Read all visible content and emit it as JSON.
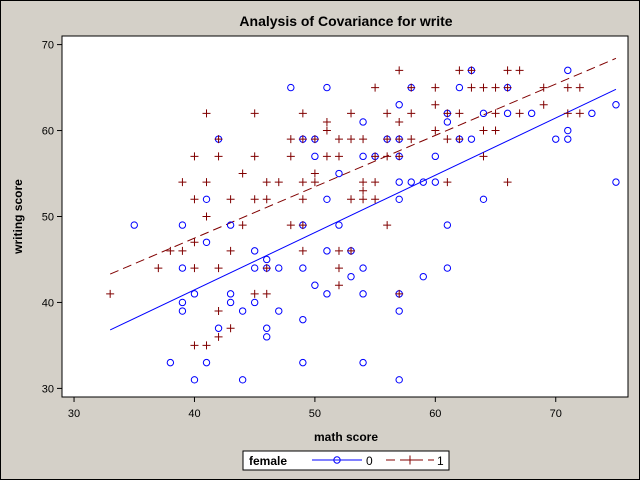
{
  "chart_data": {
    "type": "scatter",
    "title": "Analysis of Covariance for write",
    "xlabel": "math score",
    "ylabel": "writing score",
    "xlim": [
      29,
      76
    ],
    "ylim": [
      29,
      71
    ],
    "xticks": [
      30,
      40,
      50,
      60,
      70
    ],
    "yticks": [
      30,
      40,
      50,
      60,
      70
    ],
    "legend": {
      "title": "female",
      "placement": "bottom-center"
    },
    "series": [
      {
        "name": "0",
        "marker": "circle",
        "color": "#0000ff",
        "line_style": "solid",
        "fit_line": {
          "x": [
            33,
            75
          ],
          "y": [
            36.8,
            64.8
          ]
        },
        "points": [
          [
            35,
            49
          ],
          [
            38,
            33
          ],
          [
            39,
            39
          ],
          [
            39,
            40
          ],
          [
            39,
            44
          ],
          [
            39,
            49
          ],
          [
            40,
            31
          ],
          [
            40,
            41
          ],
          [
            41,
            33
          ],
          [
            41,
            47
          ],
          [
            41,
            52
          ],
          [
            42,
            37
          ],
          [
            42,
            59
          ],
          [
            43,
            40
          ],
          [
            43,
            41
          ],
          [
            43,
            49
          ],
          [
            44,
            31
          ],
          [
            44,
            39
          ],
          [
            45,
            40
          ],
          [
            45,
            44
          ],
          [
            45,
            46
          ],
          [
            46,
            36
          ],
          [
            46,
            37
          ],
          [
            46,
            44
          ],
          [
            46,
            45
          ],
          [
            47,
            39
          ],
          [
            47,
            44
          ],
          [
            48,
            65
          ],
          [
            49,
            33
          ],
          [
            49,
            38
          ],
          [
            49,
            44
          ],
          [
            49,
            49
          ],
          [
            49,
            59
          ],
          [
            50,
            42
          ],
          [
            50,
            57
          ],
          [
            50,
            59
          ],
          [
            51,
            41
          ],
          [
            51,
            46
          ],
          [
            51,
            52
          ],
          [
            51,
            65
          ],
          [
            52,
            49
          ],
          [
            52,
            55
          ],
          [
            53,
            43
          ],
          [
            53,
            46
          ],
          [
            54,
            33
          ],
          [
            54,
            41
          ],
          [
            54,
            44
          ],
          [
            54,
            57
          ],
          [
            54,
            61
          ],
          [
            55,
            57
          ],
          [
            56,
            59
          ],
          [
            57,
            31
          ],
          [
            57,
            39
          ],
          [
            57,
            41
          ],
          [
            57,
            52
          ],
          [
            57,
            54
          ],
          [
            57,
            57
          ],
          [
            57,
            59
          ],
          [
            57,
            63
          ],
          [
            58,
            54
          ],
          [
            58,
            65
          ],
          [
            59,
            43
          ],
          [
            59,
            54
          ],
          [
            60,
            54
          ],
          [
            60,
            57
          ],
          [
            61,
            44
          ],
          [
            61,
            49
          ],
          [
            61,
            61
          ],
          [
            61,
            62
          ],
          [
            62,
            59
          ],
          [
            62,
            65
          ],
          [
            63,
            59
          ],
          [
            63,
            67
          ],
          [
            64,
            52
          ],
          [
            64,
            62
          ],
          [
            66,
            62
          ],
          [
            66,
            65
          ],
          [
            68,
            62
          ],
          [
            70,
            59
          ],
          [
            71,
            59
          ],
          [
            71,
            60
          ],
          [
            71,
            67
          ],
          [
            73,
            62
          ],
          [
            75,
            54
          ],
          [
            75,
            63
          ]
        ]
      },
      {
        "name": "1",
        "marker": "plus",
        "color": "#800000",
        "line_style": "dashed",
        "fit_line": {
          "x": [
            33,
            75
          ],
          "y": [
            43.3,
            68.4
          ]
        },
        "points": [
          [
            33,
            41
          ],
          [
            37,
            44
          ],
          [
            38,
            46
          ],
          [
            39,
            46
          ],
          [
            39,
            54
          ],
          [
            40,
            35
          ],
          [
            40,
            44
          ],
          [
            40,
            47
          ],
          [
            40,
            52
          ],
          [
            40,
            57
          ],
          [
            41,
            35
          ],
          [
            41,
            50
          ],
          [
            41,
            54
          ],
          [
            41,
            62
          ],
          [
            42,
            36
          ],
          [
            42,
            39
          ],
          [
            42,
            44
          ],
          [
            42,
            57
          ],
          [
            42,
            59
          ],
          [
            43,
            37
          ],
          [
            43,
            46
          ],
          [
            43,
            52
          ],
          [
            44,
            49
          ],
          [
            44,
            55
          ],
          [
            45,
            41
          ],
          [
            45,
            52
          ],
          [
            45,
            57
          ],
          [
            45,
            62
          ],
          [
            46,
            41
          ],
          [
            46,
            44
          ],
          [
            46,
            52
          ],
          [
            46,
            54
          ],
          [
            47,
            54
          ],
          [
            48,
            49
          ],
          [
            48,
            57
          ],
          [
            48,
            59
          ],
          [
            49,
            46
          ],
          [
            49,
            49
          ],
          [
            49,
            52
          ],
          [
            49,
            54
          ],
          [
            49,
            59
          ],
          [
            49,
            62
          ],
          [
            50,
            54
          ],
          [
            50,
            55
          ],
          [
            50,
            59
          ],
          [
            51,
            57
          ],
          [
            51,
            60
          ],
          [
            51,
            61
          ],
          [
            52,
            42
          ],
          [
            52,
            44
          ],
          [
            52,
            46
          ],
          [
            52,
            57
          ],
          [
            52,
            59
          ],
          [
            53,
            46
          ],
          [
            53,
            52
          ],
          [
            53,
            59
          ],
          [
            53,
            62
          ],
          [
            54,
            52
          ],
          [
            54,
            53
          ],
          [
            54,
            54
          ],
          [
            54,
            59
          ],
          [
            55,
            52
          ],
          [
            55,
            54
          ],
          [
            55,
            57
          ],
          [
            55,
            65
          ],
          [
            56,
            49
          ],
          [
            56,
            57
          ],
          [
            56,
            59
          ],
          [
            56,
            62
          ],
          [
            57,
            41
          ],
          [
            57,
            57
          ],
          [
            57,
            59
          ],
          [
            57,
            61
          ],
          [
            57,
            67
          ],
          [
            58,
            59
          ],
          [
            58,
            62
          ],
          [
            58,
            65
          ],
          [
            60,
            60
          ],
          [
            60,
            63
          ],
          [
            60,
            65
          ],
          [
            61,
            54
          ],
          [
            61,
            59
          ],
          [
            61,
            62
          ],
          [
            62,
            59
          ],
          [
            62,
            62
          ],
          [
            62,
            67
          ],
          [
            63,
            65
          ],
          [
            63,
            67
          ],
          [
            64,
            57
          ],
          [
            64,
            60
          ],
          [
            64,
            65
          ],
          [
            65,
            60
          ],
          [
            65,
            62
          ],
          [
            65,
            65
          ],
          [
            66,
            54
          ],
          [
            66,
            65
          ],
          [
            66,
            67
          ],
          [
            67,
            62
          ],
          [
            67,
            67
          ],
          [
            69,
            63
          ],
          [
            69,
            65
          ],
          [
            71,
            62
          ],
          [
            71,
            65
          ],
          [
            72,
            62
          ],
          [
            72,
            65
          ]
        ]
      }
    ]
  }
}
